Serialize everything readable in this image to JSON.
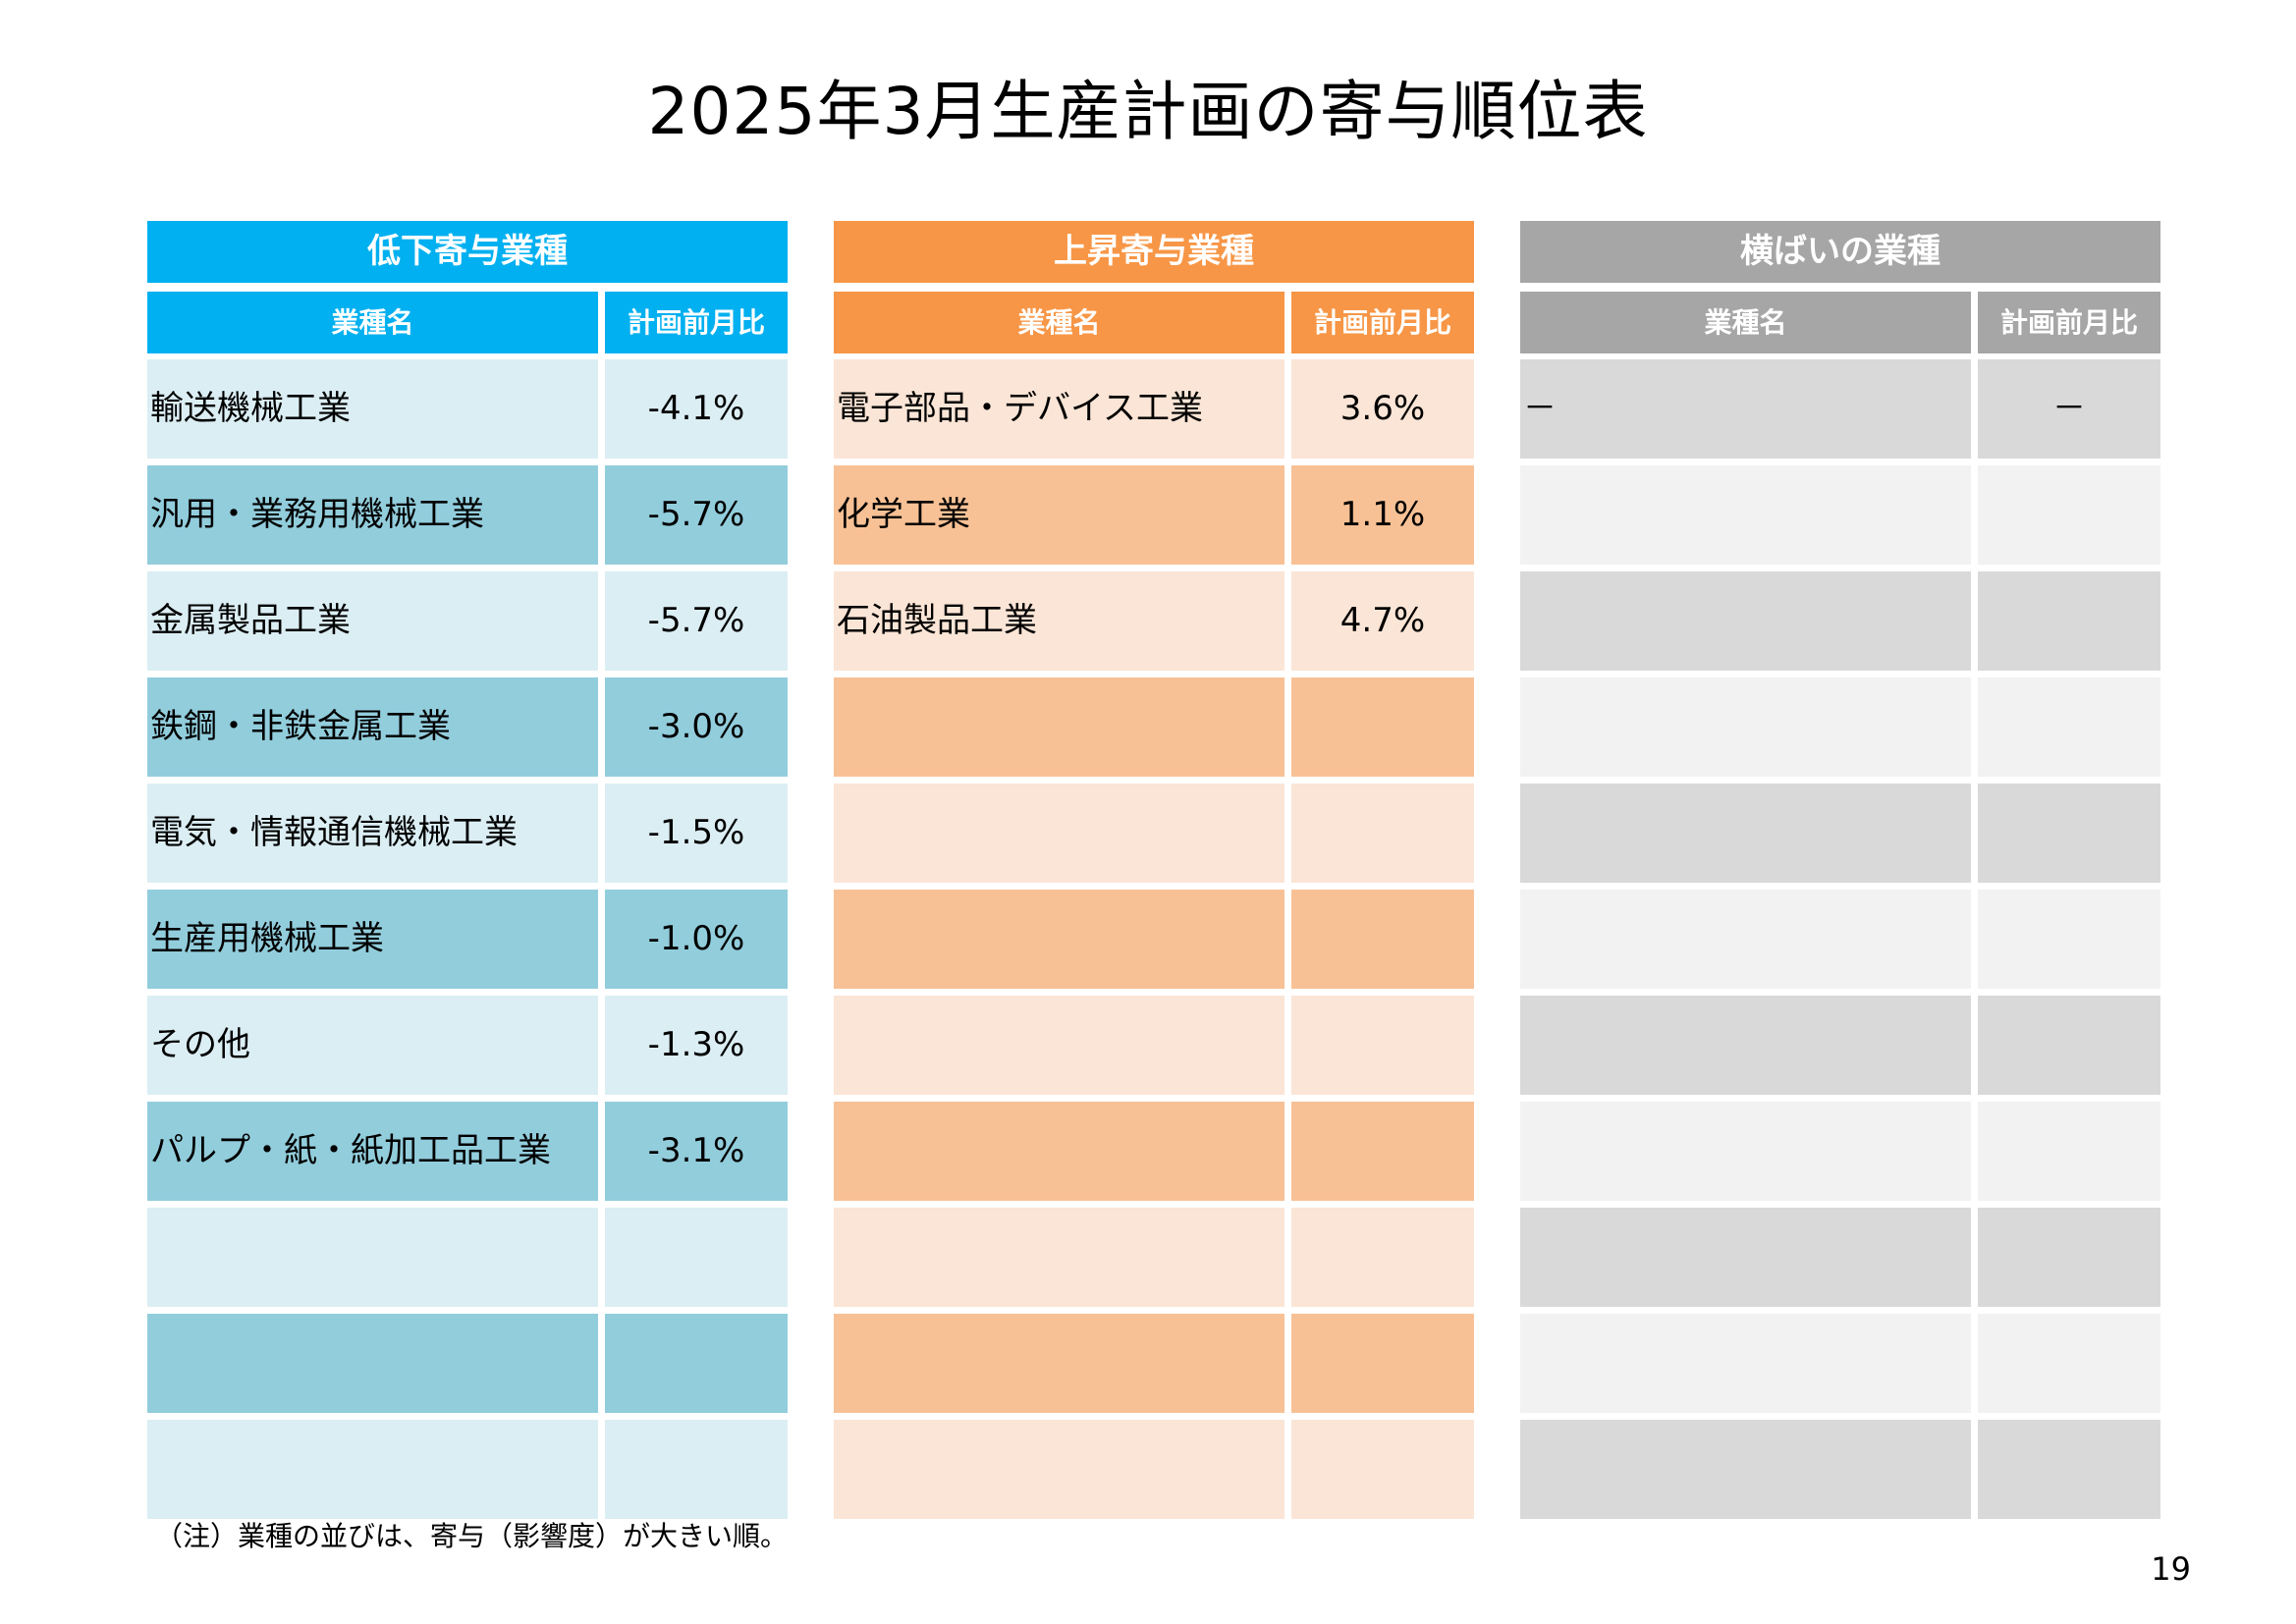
{
  "title": "2025年3月生産計画の寄与順位表",
  "columns": {
    "name": "業種名",
    "value": "計画前月比"
  },
  "panels": {
    "decrease": {
      "header": "低下寄与業種",
      "rows": [
        {
          "name": "輸送機械工業",
          "value": "-4.1%"
        },
        {
          "name": "汎用・業務用機械工業",
          "value": "-5.7%"
        },
        {
          "name": "金属製品工業",
          "value": "-5.7%"
        },
        {
          "name": "鉄鋼・非鉄金属工業",
          "value": "-3.0%"
        },
        {
          "name": "電気・情報通信機械工業",
          "value": "-1.5%"
        },
        {
          "name": "生産用機械工業",
          "value": "-1.0%"
        },
        {
          "name": "その他",
          "value": "-1.3%"
        },
        {
          "name": "パルプ・紙・紙加工品工業",
          "value": "-3.1%"
        },
        {
          "name": "",
          "value": ""
        },
        {
          "name": "",
          "value": ""
        },
        {
          "name": "",
          "value": ""
        }
      ]
    },
    "increase": {
      "header": "上昇寄与業種",
      "rows": [
        {
          "name": "電子部品・デバイス工業",
          "value": "3.6%"
        },
        {
          "name": "化学工業",
          "value": "1.1%"
        },
        {
          "name": "石油製品工業",
          "value": "4.7%"
        },
        {
          "name": "",
          "value": ""
        },
        {
          "name": "",
          "value": ""
        },
        {
          "name": "",
          "value": ""
        },
        {
          "name": "",
          "value": ""
        },
        {
          "name": "",
          "value": ""
        },
        {
          "name": "",
          "value": ""
        },
        {
          "name": "",
          "value": ""
        },
        {
          "name": "",
          "value": ""
        }
      ]
    },
    "flat": {
      "header": "横ばいの業種",
      "rows": [
        {
          "name": "－",
          "value": "－"
        },
        {
          "name": "",
          "value": ""
        },
        {
          "name": "",
          "value": ""
        },
        {
          "name": "",
          "value": ""
        },
        {
          "name": "",
          "value": ""
        },
        {
          "name": "",
          "value": ""
        },
        {
          "name": "",
          "value": ""
        },
        {
          "name": "",
          "value": ""
        },
        {
          "name": "",
          "value": ""
        },
        {
          "name": "",
          "value": ""
        },
        {
          "name": "",
          "value": ""
        }
      ]
    }
  },
  "note": "（注）業種の並びは、寄与（影響度）が大きい順。",
  "page_number": "19"
}
